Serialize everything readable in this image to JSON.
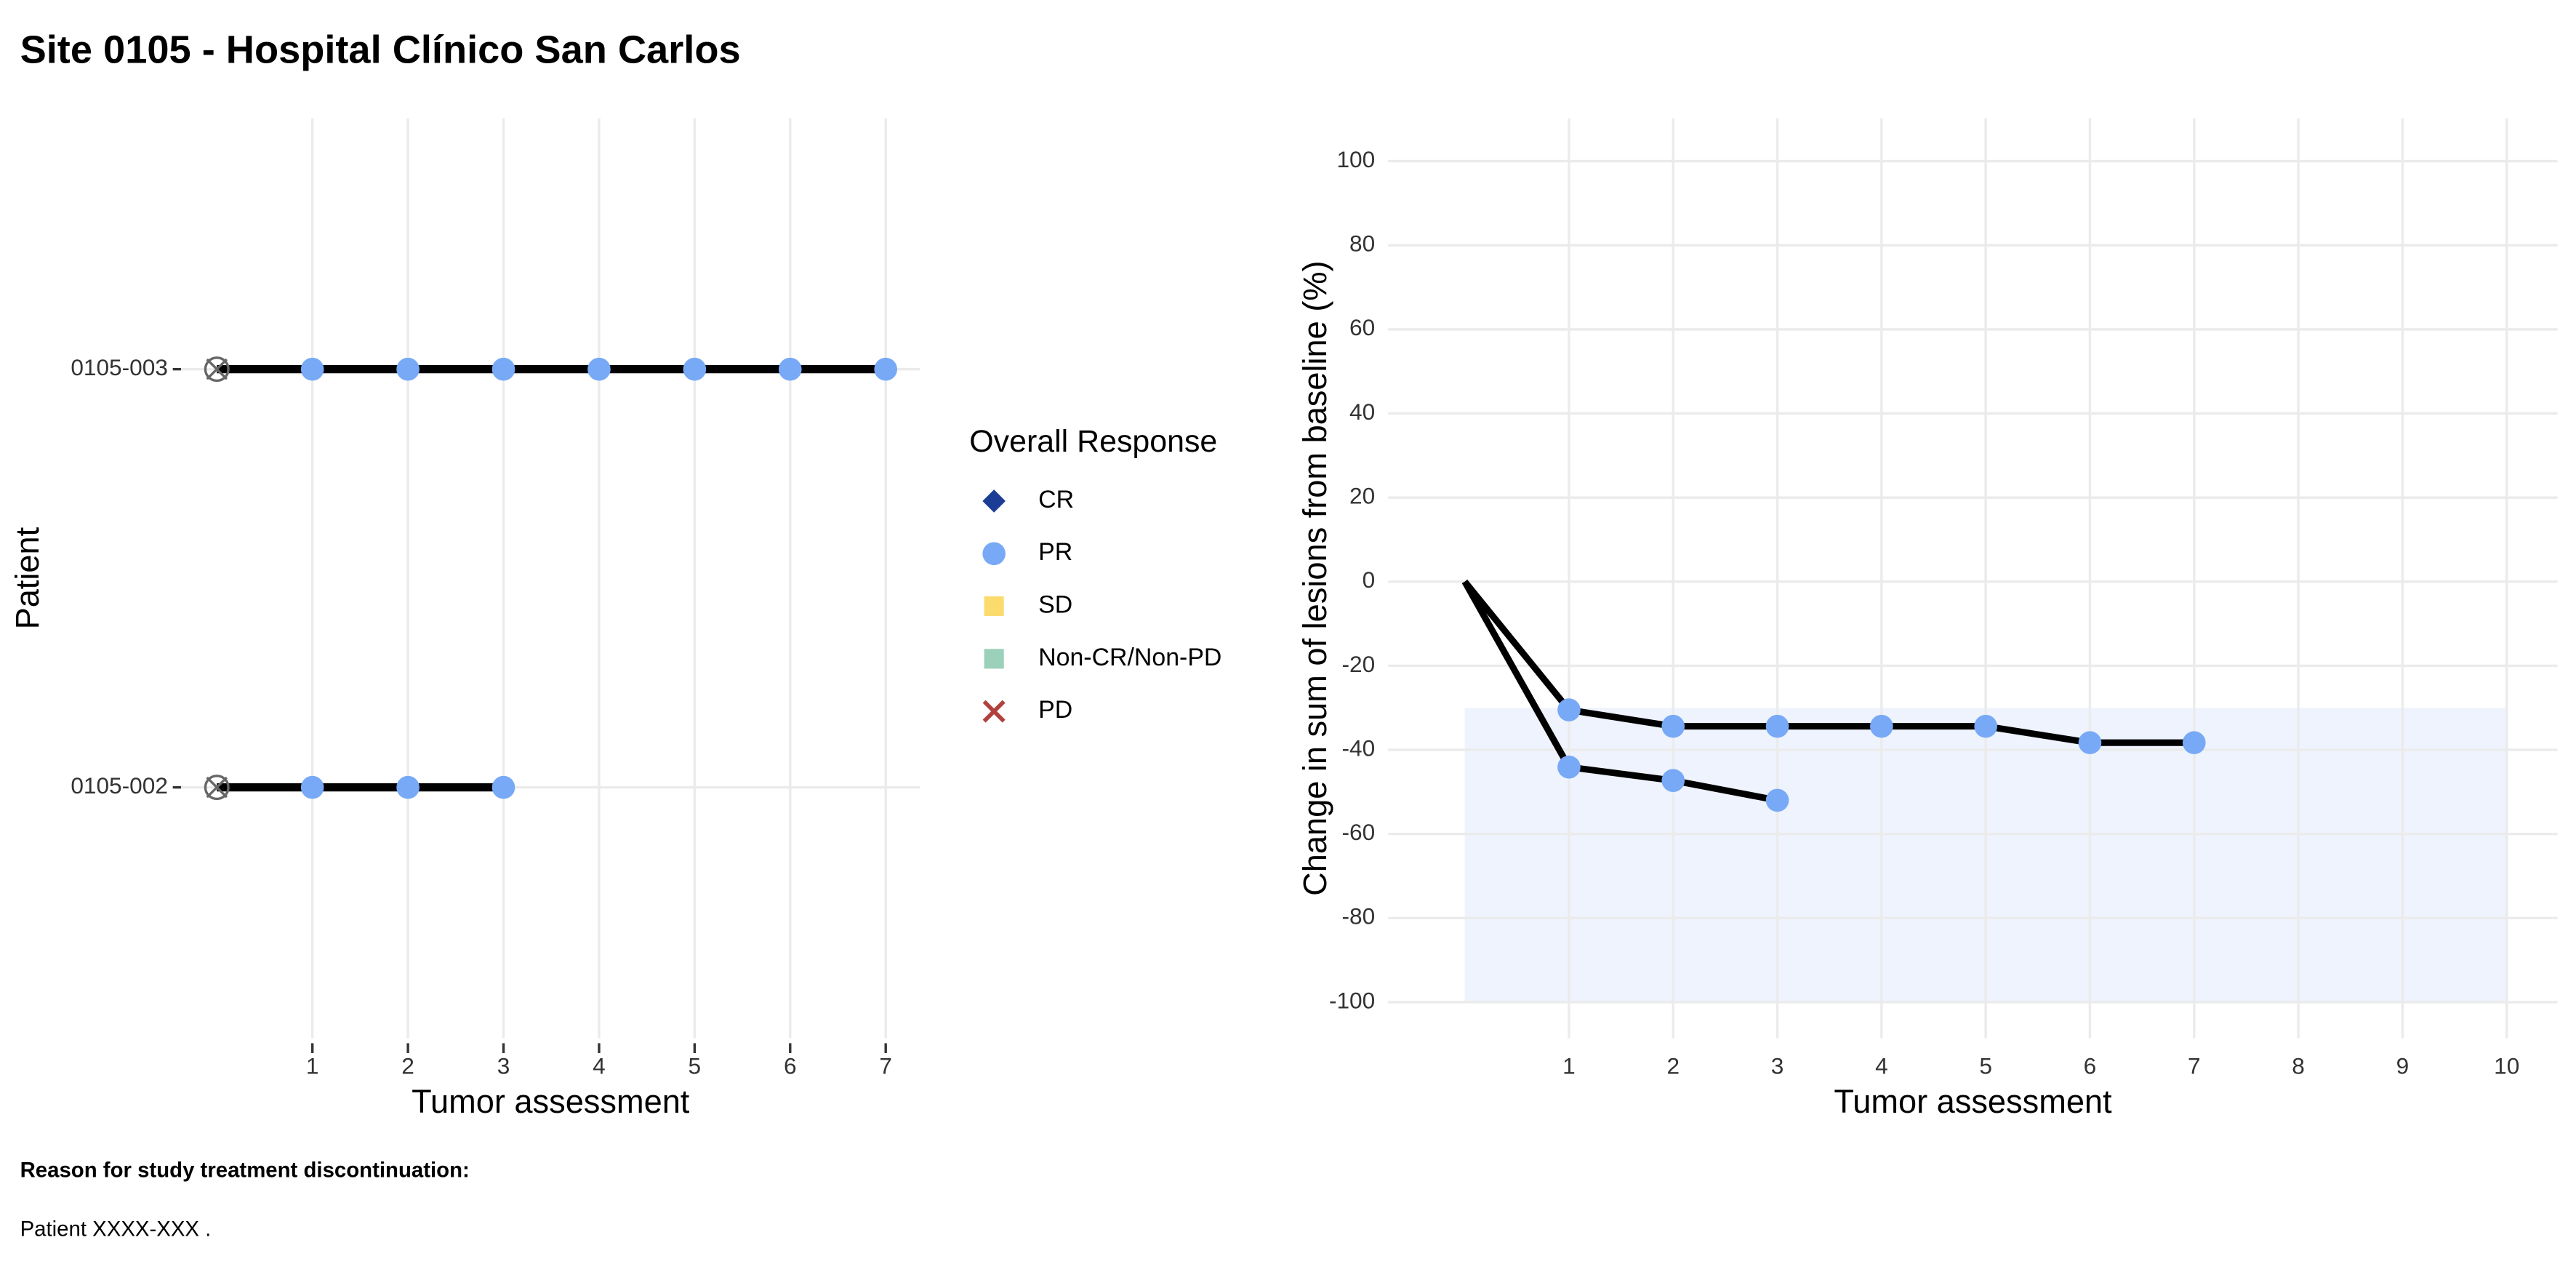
{
  "title": "Site 0105 - Hospital Clínico San Carlos",
  "chart_data": [
    {
      "type": "swimmer",
      "x_label": "Tumor assessment",
      "y_label": "Patient",
      "xlim": [
        -0.375,
        7.36
      ],
      "xticks": [
        1,
        2,
        3,
        4,
        5,
        6,
        7
      ],
      "grid": true,
      "baseline_marker": true,
      "patients": [
        {
          "id": "0105-002",
          "x": [
            0,
            1,
            2,
            3
          ],
          "response": [
            null,
            "PR",
            "PR",
            "PR"
          ]
        },
        {
          "id": "0105-003",
          "x": [
            0,
            1,
            2,
            3,
            4,
            5,
            6,
            7
          ],
          "response": [
            null,
            "PR",
            "PR",
            "PR",
            "PR",
            "PR",
            "PR",
            "PR"
          ]
        }
      ],
      "legend": {
        "title": "Overall Response",
        "entries": [
          {
            "label": "CR",
            "color": "#1c3d96",
            "shape": "diamond"
          },
          {
            "label": "PR",
            "color": "#77a9f6",
            "shape": "circle"
          },
          {
            "label": "SD",
            "color": "#fbdb6e",
            "shape": "square"
          },
          {
            "label": "Non-CR/Non-PD",
            "color": "#9bd0bb",
            "shape": "square"
          },
          {
            "label": "PD",
            "color": "#b0413e",
            "shape": "cross"
          }
        ]
      }
    },
    {
      "type": "line",
      "x_label": "Tumor assessment",
      "y_label": "Change in sum of lesions from baseline (%)",
      "xlim": [
        -0.735,
        10.488
      ],
      "ylim": [
        -108.6,
        110.2
      ],
      "xticks": [
        1,
        2,
        3,
        4,
        5,
        6,
        7,
        8,
        9,
        10
      ],
      "yticks": [
        -100,
        -80,
        -60,
        -40,
        -20,
        0,
        20,
        40,
        60,
        80,
        100
      ],
      "grid": true,
      "shade": {
        "x": [
          0,
          10
        ],
        "y": [
          -100,
          -30
        ],
        "color": "#eef3fd"
      },
      "series": [
        {
          "color": "#000000",
          "x": [
            0,
            1,
            2,
            3,
            4,
            5,
            6,
            7
          ],
          "values": [
            0,
            -30.5,
            -34.4,
            -34.4,
            -34.4,
            -34.4,
            -38.3,
            -38.3
          ],
          "response": [
            null,
            "PR",
            "PR",
            "PR",
            "PR",
            "PR",
            "PR",
            "PR"
          ]
        },
        {
          "color": "#000000",
          "x": [
            0,
            1,
            2,
            3
          ],
          "values": [
            0,
            -44.1,
            -47.3,
            -52
          ],
          "response": [
            null,
            "PR",
            "PR",
            "PR"
          ]
        }
      ]
    }
  ],
  "footer": {
    "heading": "Reason for study treatment discontinuation:",
    "text": "Patient XXXX-XXX ."
  }
}
